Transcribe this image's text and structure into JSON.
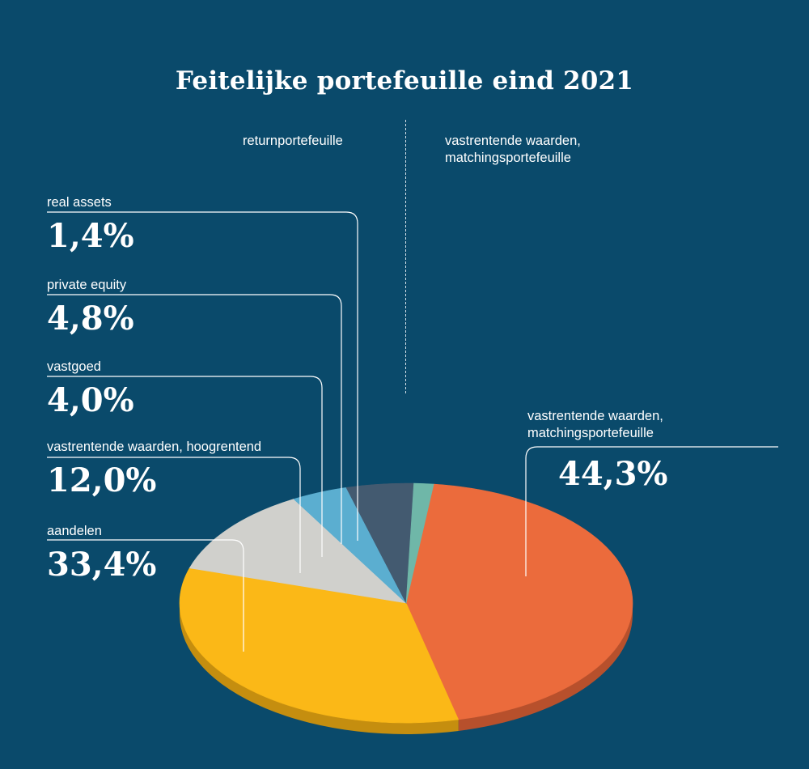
{
  "title": "Feitelijke portefeuille eind 2021",
  "groups": {
    "return": "returnportefeuille",
    "matching": "vastrentende waarden,\nmatchingsportefeuille"
  },
  "chart_data": {
    "type": "pie",
    "title": "Feitelijke portefeuille eind 2021",
    "unit": "%",
    "slices": [
      {
        "label": "vastrentende waarden,\nmatchingsportefeuille",
        "value": 44.3,
        "display": "44,3%",
        "color": "#eb6b3c",
        "side_color": "#b7502c"
      },
      {
        "label": "aandelen",
        "value": 33.4,
        "display": "33,4%",
        "color": "#fbb817",
        "side_color": "#c58e0f"
      },
      {
        "label": "vastrentende waarden, hoogrentend",
        "value": 12.0,
        "display": "12,0%",
        "color": "#d0d0cc",
        "side_color": "#a3a3a0"
      },
      {
        "label": "vastgoed",
        "value": 4.0,
        "display": "4,0%",
        "color": "#5baed0",
        "side_color": "#3f86a5"
      },
      {
        "label": "private equity",
        "value": 4.8,
        "display": "4,8%",
        "color": "#435a70",
        "side_color": "#2f4254"
      },
      {
        "label": "real assets",
        "value": 1.4,
        "display": "1,4%",
        "color": "#6fb7a8",
        "side_color": "#4f8e80"
      }
    ]
  },
  "colors": {
    "background": "#0a4a6b",
    "text": "#ffffff",
    "leader": "#ffffff"
  }
}
